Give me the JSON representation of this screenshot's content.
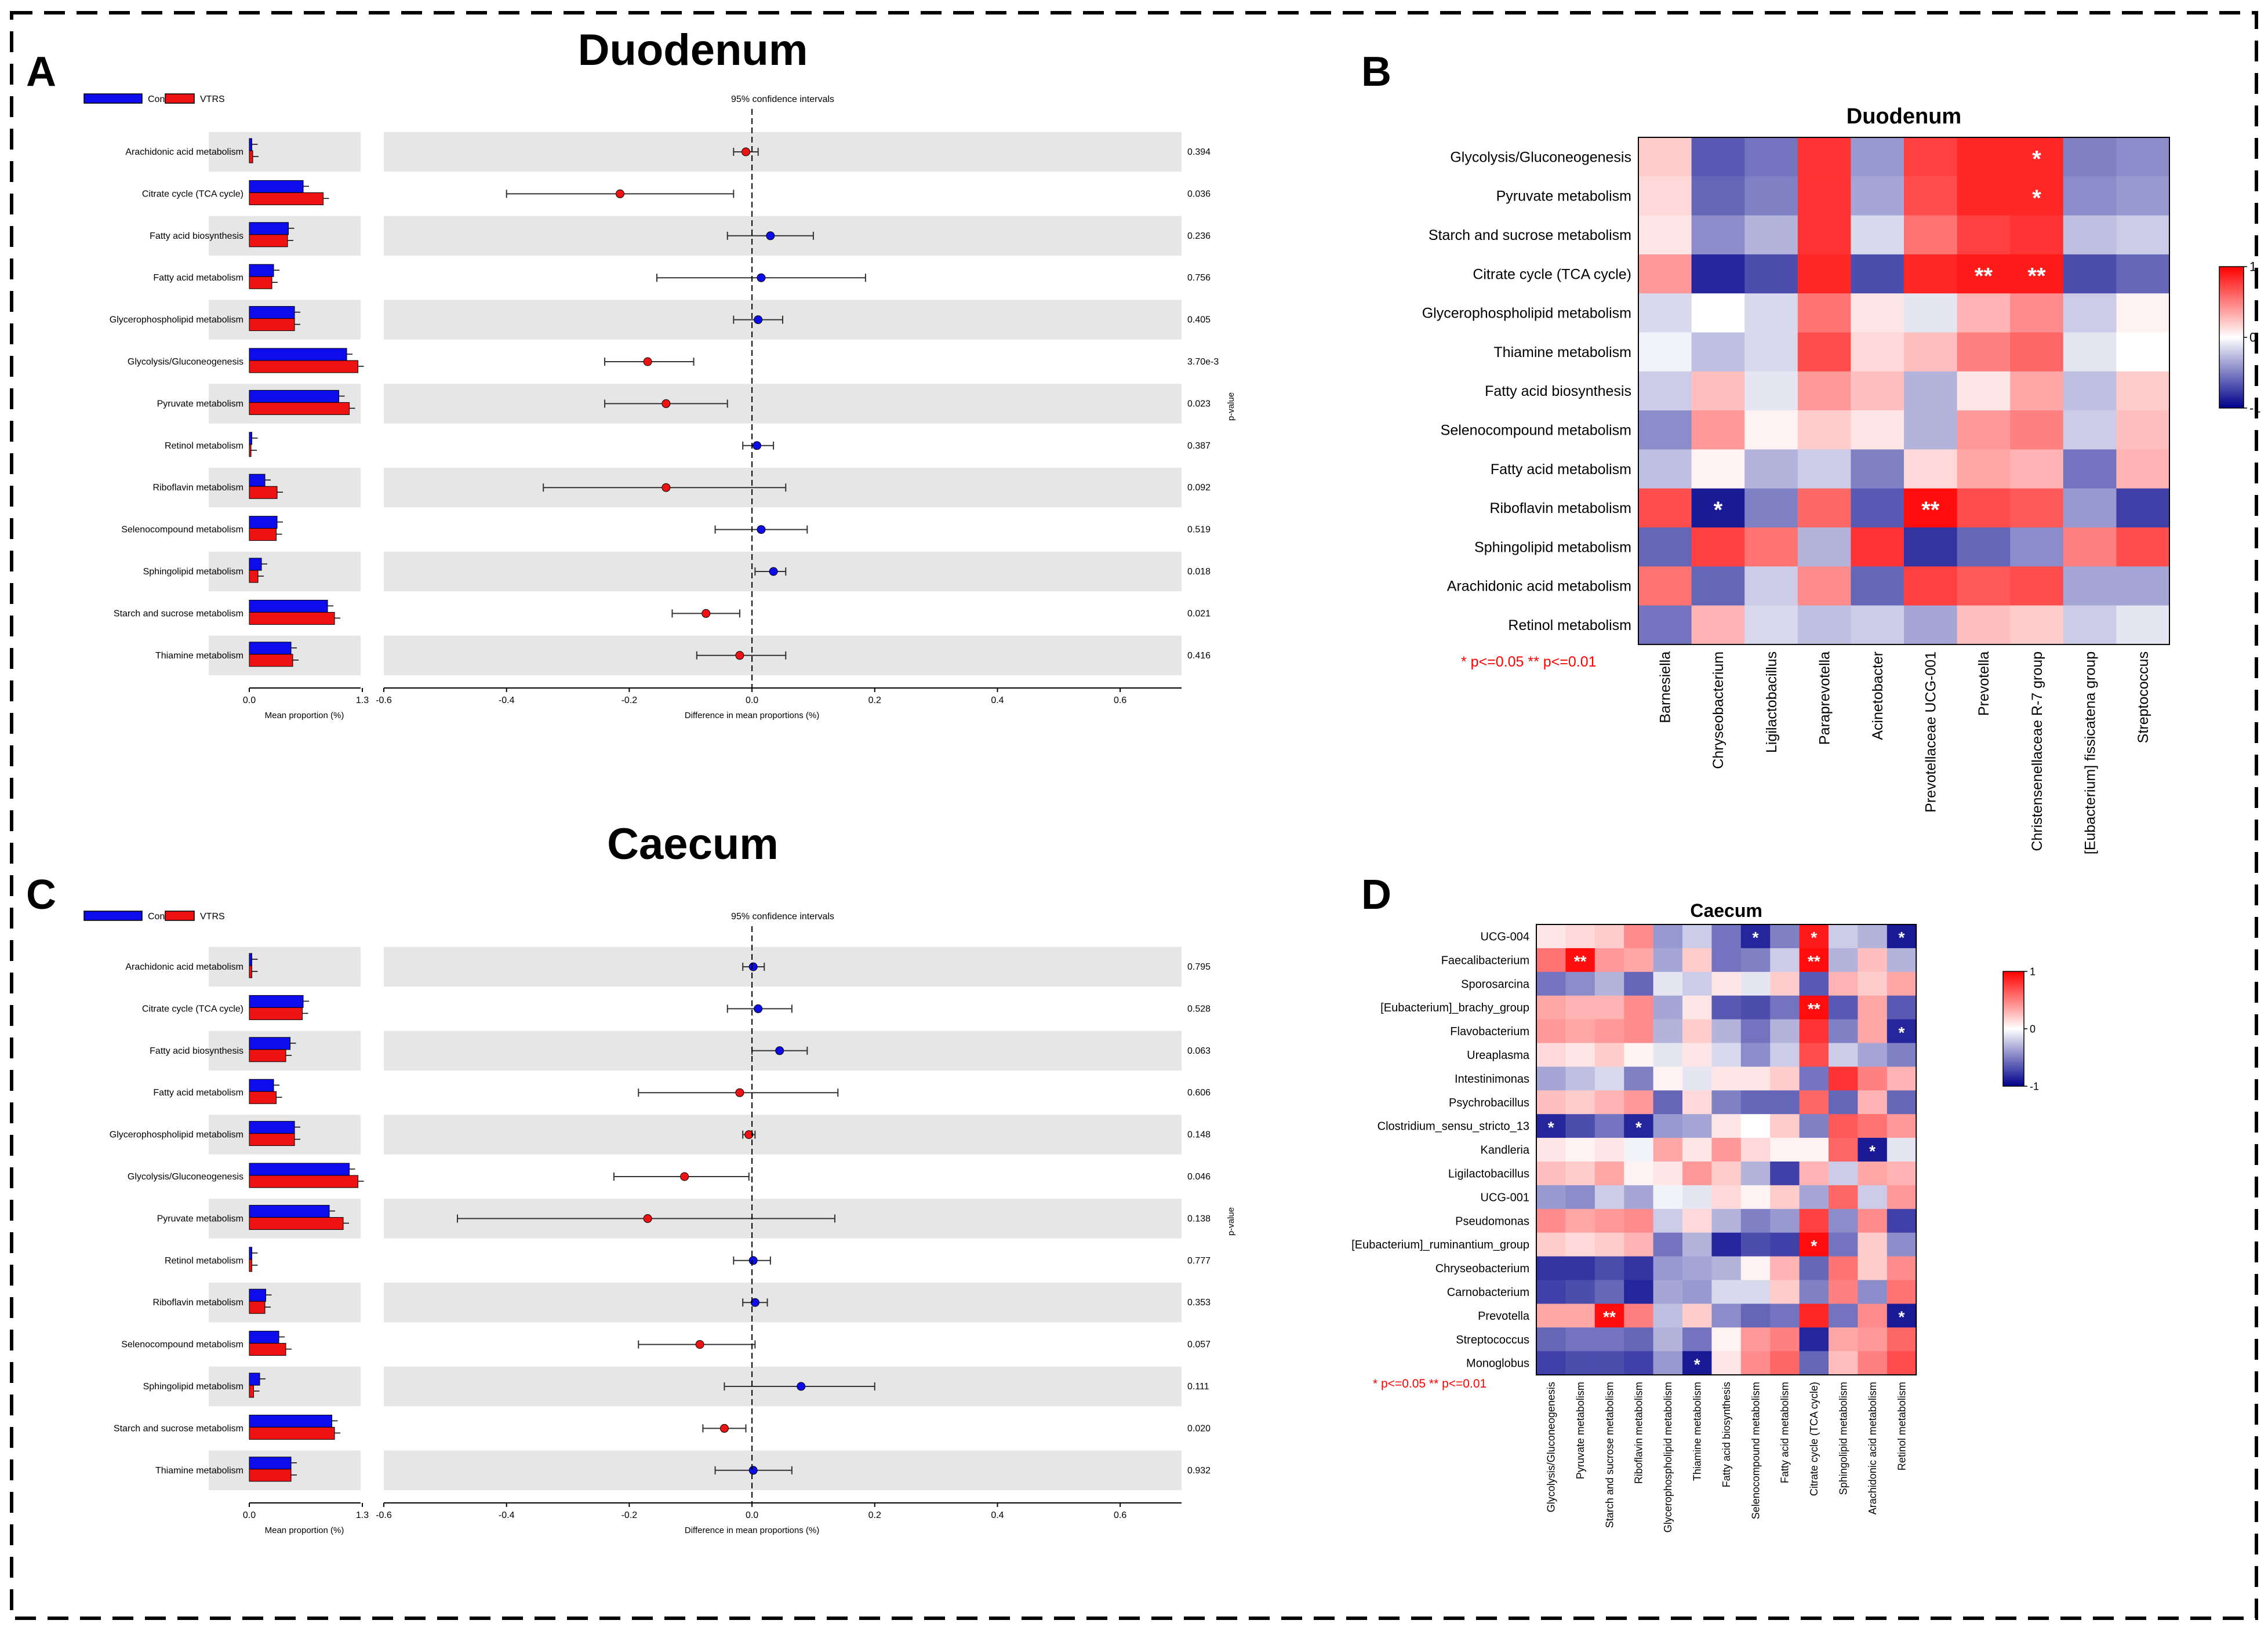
{
  "panel_letters": [
    "A",
    "B",
    "C",
    "D"
  ],
  "legend_labels": [
    "Control",
    "VTRS"
  ],
  "colors": {
    "control": "#0d0deb",
    "vtrs": "#ee1212",
    "band": "#e6e6e6",
    "sig": "#ff0000",
    "star_on_color": "#ffffff",
    "heat_neg": "#00008b",
    "heat_mid": "#ffffff",
    "heat_pos": "#ff0000"
  },
  "chart_data": [
    {
      "id": "A",
      "type": "bar",
      "subtype": "extended_error_bar",
      "title": "Duodenum",
      "ci_label": "95% confidence intervals",
      "pvalue_axis_label": "p-value",
      "bar_xlabel": "Mean proportion (%)",
      "bar_xticks": [
        "0.0",
        "1.3"
      ],
      "bar_xlim": [
        0,
        1.3
      ],
      "diff_xlabel": "Difference in mean proportions (%)",
      "diff_xticks": [
        "-0.6",
        "-0.4",
        "-0.2",
        "0.0",
        "0.2",
        "0.4",
        "0.6"
      ],
      "diff_xlim": [
        -0.6,
        0.7
      ],
      "categories": [
        "Arachidonic acid metabolism",
        "Citrate cycle (TCA cycle)",
        "Fatty acid biosynthesis",
        "Fatty acid metabolism",
        "Glycerophospholipid metabolism",
        "Glycolysis/Gluconeogenesis",
        "Pyruvate metabolism",
        "Retinol metabolism",
        "Riboflavin metabolism",
        "Selenocompound metabolism",
        "Sphingolipid metabolism",
        "Starch and sucrose metabolism",
        "Thiamine metabolism"
      ],
      "series": [
        {
          "name": "Control",
          "values": [
            0.03,
            0.62,
            0.45,
            0.28,
            0.52,
            1.12,
            1.03,
            0.03,
            0.18,
            0.32,
            0.14,
            0.9,
            0.48
          ]
        },
        {
          "name": "VTRS",
          "values": [
            0.04,
            0.85,
            0.44,
            0.26,
            0.52,
            1.25,
            1.15,
            0.02,
            0.32,
            0.31,
            0.1,
            0.98,
            0.5
          ]
        }
      ],
      "difference": [
        -0.01,
        -0.215,
        0.03,
        0.015,
        0.01,
        -0.17,
        -0.14,
        0.008,
        -0.14,
        0.015,
        0.035,
        -0.075,
        -0.02
      ],
      "ci_low": [
        -0.03,
        -0.4,
        -0.04,
        -0.155,
        -0.03,
        -0.24,
        -0.24,
        -0.015,
        -0.34,
        -0.06,
        0.005,
        -0.13,
        -0.09
      ],
      "ci_high": [
        0.01,
        -0.03,
        0.1,
        0.185,
        0.05,
        -0.095,
        -0.04,
        0.035,
        0.055,
        0.09,
        0.055,
        -0.02,
        0.055
      ],
      "p_values": [
        "0.394",
        "0.036",
        "0.236",
        "0.756",
        "0.405",
        "3.70e-3",
        "0.023",
        "0.387",
        "0.092",
        "0.519",
        "0.018",
        "0.021",
        "0.416"
      ]
    },
    {
      "id": "B",
      "type": "heatmap",
      "title": "Duodenum",
      "rows": [
        "Glycolysis/Gluconeogenesis",
        "Pyruvate metabolism",
        "Starch and sucrose metabolism",
        "Citrate cycle (TCA cycle)",
        "Glycerophospholipid metabolism",
        "Thiamine metabolism",
        "Fatty acid biosynthesis",
        "Selenocompound metabolism",
        "Fatty acid metabolism",
        "Riboflavin metabolism",
        "Sphingolipid metabolism",
        "Arachidonic acid metabolism",
        "Retinol metabolism"
      ],
      "columns": [
        "Barnesiella",
        "Chryseobacterium",
        "Ligilactobacillus",
        "Paraprevotella",
        "Acinetobacter",
        "Prevotellaceae UCG-001",
        "Prevotella",
        "Christensenellaceae R-7 group",
        "[Eubacterium] fissicatena group",
        "Streptococcus"
      ],
      "values": [
        [
          0.2,
          -0.65,
          -0.55,
          0.8,
          -0.4,
          0.75,
          0.85,
          0.85,
          -0.5,
          -0.45
        ],
        [
          0.15,
          -0.6,
          -0.5,
          0.8,
          -0.35,
          0.7,
          0.85,
          0.85,
          -0.45,
          -0.4
        ],
        [
          0.1,
          -0.45,
          -0.3,
          0.8,
          -0.15,
          0.55,
          0.75,
          0.8,
          -0.25,
          -0.2
        ],
        [
          0.4,
          -0.85,
          -0.7,
          0.85,
          -0.7,
          0.85,
          0.9,
          0.9,
          -0.7,
          -0.6
        ],
        [
          -0.15,
          0.0,
          -0.15,
          0.55,
          0.1,
          -0.1,
          0.3,
          0.45,
          -0.2,
          0.05
        ],
        [
          -0.05,
          -0.25,
          -0.15,
          0.7,
          0.15,
          0.25,
          0.5,
          0.6,
          -0.1,
          0.0
        ],
        [
          -0.2,
          0.25,
          -0.1,
          0.4,
          0.25,
          -0.3,
          0.1,
          0.35,
          -0.25,
          0.2
        ],
        [
          -0.45,
          0.4,
          0.05,
          0.2,
          0.1,
          -0.3,
          0.4,
          0.5,
          -0.2,
          0.25
        ],
        [
          -0.25,
          0.05,
          -0.3,
          -0.2,
          -0.5,
          0.15,
          0.35,
          0.3,
          -0.55,
          0.3
        ],
        [
          0.7,
          -0.9,
          -0.5,
          0.6,
          -0.65,
          0.95,
          0.7,
          0.65,
          -0.4,
          -0.75
        ],
        [
          -0.6,
          0.75,
          0.55,
          -0.3,
          0.8,
          -0.8,
          -0.6,
          -0.45,
          0.5,
          0.7
        ],
        [
          0.55,
          -0.6,
          -0.2,
          0.45,
          -0.6,
          0.75,
          0.65,
          0.7,
          -0.35,
          -0.35
        ],
        [
          -0.55,
          0.3,
          -0.15,
          -0.25,
          -0.2,
          -0.35,
          0.25,
          0.2,
          -0.2,
          -0.1
        ]
      ],
      "stars": [
        {
          "row": 0,
          "col": 7,
          "label": "*"
        },
        {
          "row": 1,
          "col": 7,
          "label": "*"
        },
        {
          "row": 3,
          "col": 6,
          "label": "**"
        },
        {
          "row": 3,
          "col": 7,
          "label": "**"
        },
        {
          "row": 9,
          "col": 1,
          "label": "*"
        },
        {
          "row": 9,
          "col": 5,
          "label": "**"
        }
      ],
      "colorbar_ticks": [
        "1",
        "0",
        "-1"
      ],
      "colorbar_range": [
        -1,
        1
      ],
      "sig_note": "* p<=0.05  ** p<=0.01"
    },
    {
      "id": "C",
      "type": "bar",
      "subtype": "extended_error_bar",
      "title": "Caecum",
      "ci_label": "95% confidence intervals",
      "pvalue_axis_label": "p-value",
      "bar_xlabel": "Mean proportion (%)",
      "bar_xticks": [
        "0.0",
        "1.3"
      ],
      "bar_xlim": [
        0,
        1.3
      ],
      "diff_xlabel": "Difference in mean proportions (%)",
      "diff_xticks": [
        "-0.6",
        "-0.4",
        "-0.2",
        "0.0",
        "0.2",
        "0.4",
        "0.6"
      ],
      "diff_xlim": [
        -0.6,
        0.7
      ],
      "categories": [
        "Arachidonic acid metabolism",
        "Citrate cycle (TCA cycle)",
        "Fatty acid biosynthesis",
        "Fatty acid metabolism",
        "Glycerophospholipid metabolism",
        "Glycolysis/Gluconeogenesis",
        "Pyruvate metabolism",
        "Retinol metabolism",
        "Riboflavin metabolism",
        "Selenocompound metabolism",
        "Sphingolipid metabolism",
        "Starch and sucrose metabolism",
        "Thiamine metabolism"
      ],
      "series": [
        {
          "name": "Control",
          "values": [
            0.03,
            0.62,
            0.47,
            0.28,
            0.52,
            1.15,
            0.92,
            0.03,
            0.19,
            0.34,
            0.12,
            0.95,
            0.48
          ]
        },
        {
          "name": "VTRS",
          "values": [
            0.03,
            0.61,
            0.42,
            0.31,
            0.52,
            1.25,
            1.08,
            0.03,
            0.18,
            0.42,
            0.05,
            0.98,
            0.48
          ]
        }
      ],
      "difference": [
        0.002,
        0.01,
        0.045,
        -0.02,
        -0.005,
        -0.11,
        -0.17,
        0.002,
        0.005,
        -0.085,
        0.08,
        -0.045,
        0.002
      ],
      "ci_low": [
        -0.015,
        -0.04,
        0.0,
        -0.185,
        -0.015,
        -0.225,
        -0.48,
        -0.03,
        -0.015,
        -0.185,
        -0.045,
        -0.08,
        -0.06
      ],
      "ci_high": [
        0.02,
        0.065,
        0.09,
        0.14,
        0.005,
        -0.005,
        0.135,
        0.03,
        0.025,
        0.005,
        0.2,
        -0.01,
        0.065
      ],
      "p_values": [
        "0.795",
        "0.528",
        "0.063",
        "0.606",
        "0.148",
        "0.046",
        "0.138",
        "0.777",
        "0.353",
        "0.057",
        "0.111",
        "0.020",
        "0.932"
      ]
    },
    {
      "id": "D",
      "type": "heatmap",
      "title": "Caecum",
      "rows": [
        "UCG-004",
        "Faecalibacterium",
        "Sporosarcina",
        "[Eubacterium]_brachy_group",
        "Flavobacterium",
        "Ureaplasma",
        "Intestinimonas",
        "Psychrobacillus",
        "Clostridium_sensu_stricto_13",
        "Kandleria",
        "Ligilactobacillus",
        "UCG-001",
        "Pseudomonas",
        "[Eubacterium]_ruminantium_group",
        "Chryseobacterium",
        "Carnobacterium",
        "Prevotella",
        "Streptococcus",
        "Monoglobus"
      ],
      "columns": [
        "Glycolysis/Gluconeogenesis",
        "Pyruvate metabolism",
        "Starch and sucrose metabolism",
        "Riboflavin metabolism",
        "Glycerophospholipid metabolism",
        "Thiamine metabolism",
        "Fatty acid biosynthesis",
        "Selenocompound metabolism",
        "Fatty acid metabolism",
        "Citrate cycle (TCA cycle)",
        "Sphingolipid metabolism",
        "Arachidonic acid metabolism",
        "Retinol metabolism"
      ],
      "values": [
        [
          0.1,
          0.15,
          0.2,
          0.45,
          -0.4,
          -0.2,
          -0.55,
          -0.85,
          -0.5,
          0.9,
          -0.2,
          -0.3,
          -0.9
        ],
        [
          0.55,
          0.95,
          0.4,
          0.35,
          -0.35,
          0.2,
          -0.55,
          -0.5,
          -0.2,
          0.95,
          -0.3,
          0.25,
          -0.3
        ],
        [
          -0.55,
          -0.45,
          -0.3,
          -0.6,
          -0.1,
          -0.2,
          0.1,
          -0.1,
          0.2,
          -0.65,
          0.3,
          0.2,
          0.35
        ],
        [
          0.35,
          0.3,
          0.3,
          0.45,
          -0.35,
          0.1,
          -0.65,
          -0.7,
          -0.55,
          0.95,
          -0.65,
          0.35,
          -0.65
        ],
        [
          0.4,
          0.35,
          0.4,
          0.45,
          -0.3,
          0.2,
          -0.3,
          -0.55,
          -0.3,
          0.8,
          -0.5,
          0.35,
          -0.85
        ],
        [
          0.15,
          0.1,
          0.2,
          0.05,
          -0.1,
          0.1,
          -0.15,
          -0.45,
          -0.2,
          0.7,
          -0.2,
          -0.35,
          -0.5
        ],
        [
          -0.35,
          -0.25,
          -0.15,
          -0.5,
          0.05,
          -0.1,
          0.1,
          0.1,
          0.2,
          -0.55,
          0.8,
          0.5,
          0.3
        ],
        [
          0.25,
          0.2,
          0.3,
          0.4,
          -0.6,
          0.15,
          -0.5,
          -0.6,
          -0.6,
          0.6,
          -0.6,
          0.3,
          -0.6
        ],
        [
          -0.85,
          -0.7,
          -0.55,
          -0.85,
          -0.4,
          -0.35,
          0.1,
          0.0,
          0.2,
          -0.5,
          0.65,
          0.55,
          0.4
        ],
        [
          0.1,
          0.05,
          0.1,
          -0.05,
          0.35,
          0.1,
          0.4,
          0.15,
          0.05,
          0.05,
          0.6,
          -0.9,
          -0.1
        ],
        [
          0.25,
          0.2,
          0.35,
          0.05,
          0.1,
          0.4,
          0.2,
          -0.3,
          -0.75,
          0.3,
          -0.2,
          0.35,
          0.3
        ],
        [
          -0.4,
          -0.45,
          -0.2,
          -0.35,
          -0.05,
          -0.1,
          0.15,
          0.05,
          0.2,
          -0.35,
          0.6,
          -0.2,
          0.4
        ],
        [
          0.45,
          0.35,
          0.4,
          0.45,
          -0.2,
          0.15,
          -0.3,
          -0.5,
          -0.4,
          0.75,
          -0.45,
          0.45,
          -0.75
        ],
        [
          0.2,
          0.15,
          0.2,
          0.3,
          -0.55,
          -0.3,
          -0.85,
          -0.7,
          -0.75,
          0.95,
          -0.55,
          0.2,
          -0.45
        ],
        [
          -0.8,
          -0.8,
          -0.7,
          -0.8,
          -0.4,
          -0.35,
          -0.3,
          0.05,
          0.3,
          -0.6,
          0.55,
          0.2,
          0.45
        ],
        [
          -0.75,
          -0.7,
          -0.6,
          -0.85,
          -0.35,
          -0.4,
          -0.15,
          -0.15,
          0.2,
          -0.5,
          0.5,
          -0.45,
          0.55
        ],
        [
          0.35,
          0.35,
          0.95,
          0.5,
          -0.25,
          0.2,
          -0.45,
          -0.6,
          -0.55,
          0.85,
          -0.55,
          0.45,
          -0.9
        ],
        [
          -0.6,
          -0.55,
          -0.55,
          -0.6,
          -0.3,
          -0.55,
          0.05,
          0.4,
          0.5,
          -0.85,
          0.35,
          0.4,
          0.6
        ],
        [
          -0.75,
          -0.7,
          -0.7,
          -0.75,
          -0.4,
          -0.9,
          0.1,
          0.45,
          0.6,
          -0.6,
          0.25,
          0.5,
          0.7
        ]
      ],
      "stars": [
        {
          "row": 0,
          "col": 7,
          "label": "*"
        },
        {
          "row": 0,
          "col": 9,
          "label": "*"
        },
        {
          "row": 0,
          "col": 12,
          "label": "*"
        },
        {
          "row": 1,
          "col": 1,
          "label": "**"
        },
        {
          "row": 1,
          "col": 9,
          "label": "**"
        },
        {
          "row": 3,
          "col": 9,
          "label": "**"
        },
        {
          "row": 4,
          "col": 12,
          "label": "*"
        },
        {
          "row": 8,
          "col": 0,
          "label": "*"
        },
        {
          "row": 8,
          "col": 3,
          "label": "*"
        },
        {
          "row": 9,
          "col": 11,
          "label": "*"
        },
        {
          "row": 13,
          "col": 9,
          "label": "*"
        },
        {
          "row": 16,
          "col": 2,
          "label": "**"
        },
        {
          "row": 16,
          "col": 12,
          "label": "*"
        },
        {
          "row": 18,
          "col": 5,
          "label": "*"
        }
      ],
      "colorbar_ticks": [
        "1",
        "0",
        "-1"
      ],
      "colorbar_range": [
        -1,
        1
      ],
      "sig_note": "* p<=0.05  ** p<=0.01"
    }
  ]
}
